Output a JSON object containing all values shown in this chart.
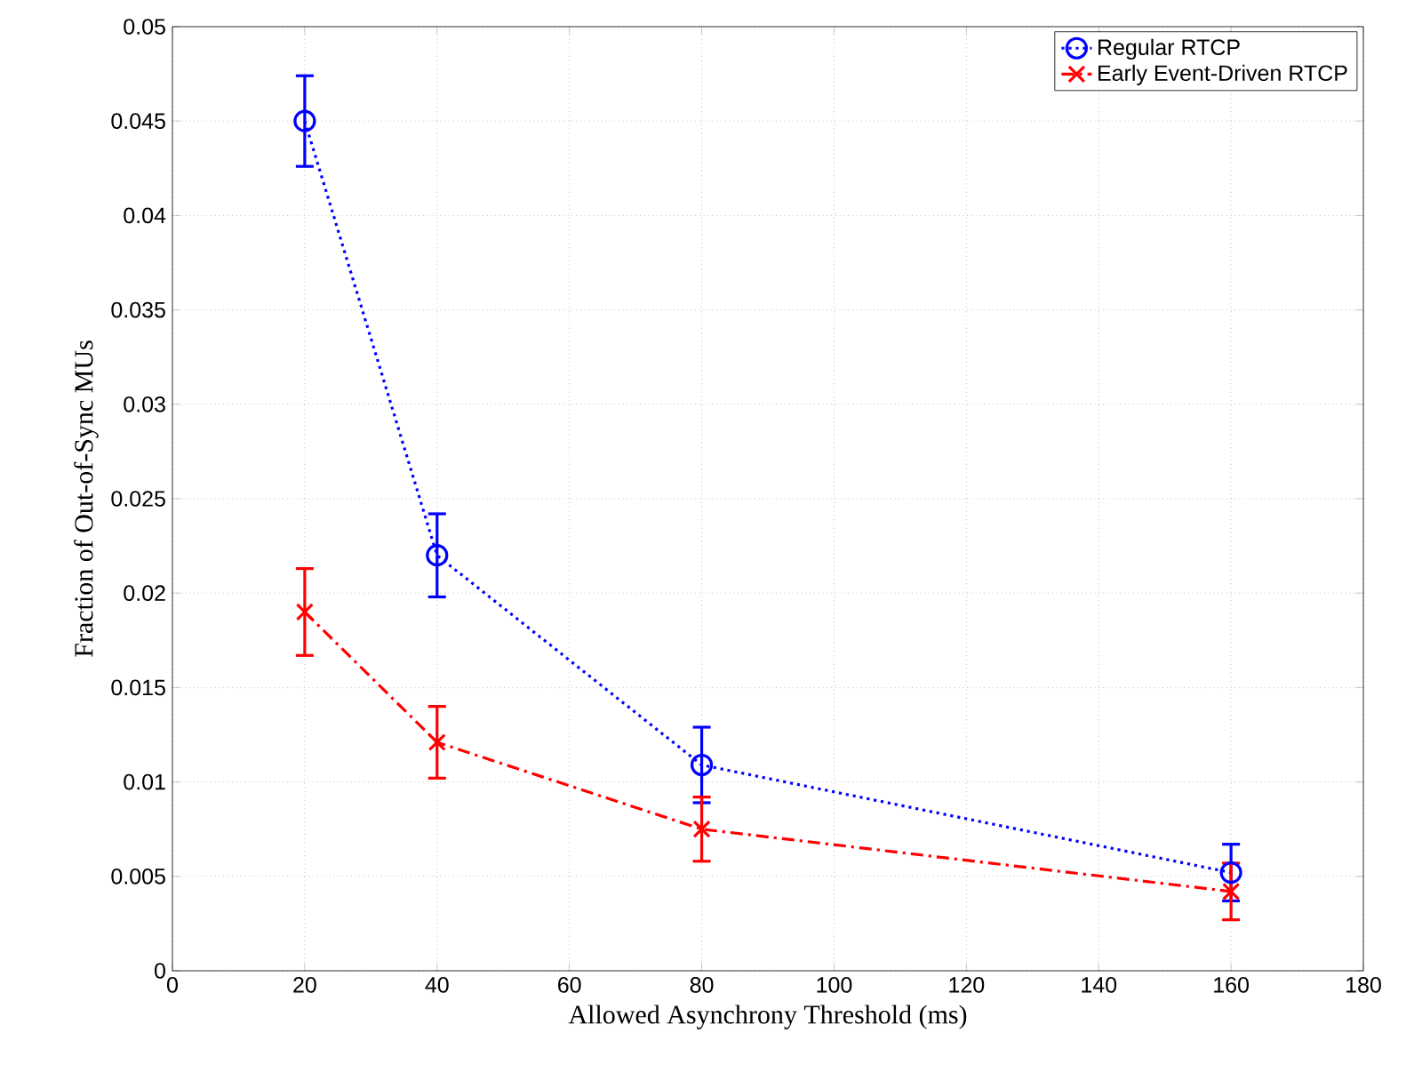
{
  "chart_data": {
    "type": "line",
    "xlabel": "Allowed Asynchrony Threshold (ms)",
    "ylabel": "Fraction of Out-of-Sync MUs",
    "x": [
      20,
      40,
      80,
      160
    ],
    "series": [
      {
        "name": "Regular RTCP",
        "color": "#0000ff",
        "marker": "circle",
        "line_style": "dotted",
        "values": [
          0.045,
          0.022,
          0.0109,
          0.0052
        ],
        "errors": [
          0.0024,
          0.0022,
          0.002,
          0.0015
        ]
      },
      {
        "name": "Early Event-Driven RTCP",
        "color": "#ff0000",
        "marker": "cross",
        "line_style": "dashdot",
        "values": [
          0.019,
          0.0121,
          0.0075,
          0.0042
        ],
        "errors": [
          0.0023,
          0.0019,
          0.0017,
          0.0015
        ]
      }
    ],
    "xlim": [
      0,
      180
    ],
    "xticks": [
      0,
      20,
      40,
      60,
      80,
      100,
      120,
      140,
      160,
      180
    ],
    "ylim": [
      0,
      0.05
    ],
    "yticks": [
      0,
      0.005,
      0.01,
      0.015,
      0.02,
      0.025,
      0.03,
      0.035,
      0.04,
      0.045,
      0.05
    ],
    "grid": true,
    "legend": "top right"
  }
}
